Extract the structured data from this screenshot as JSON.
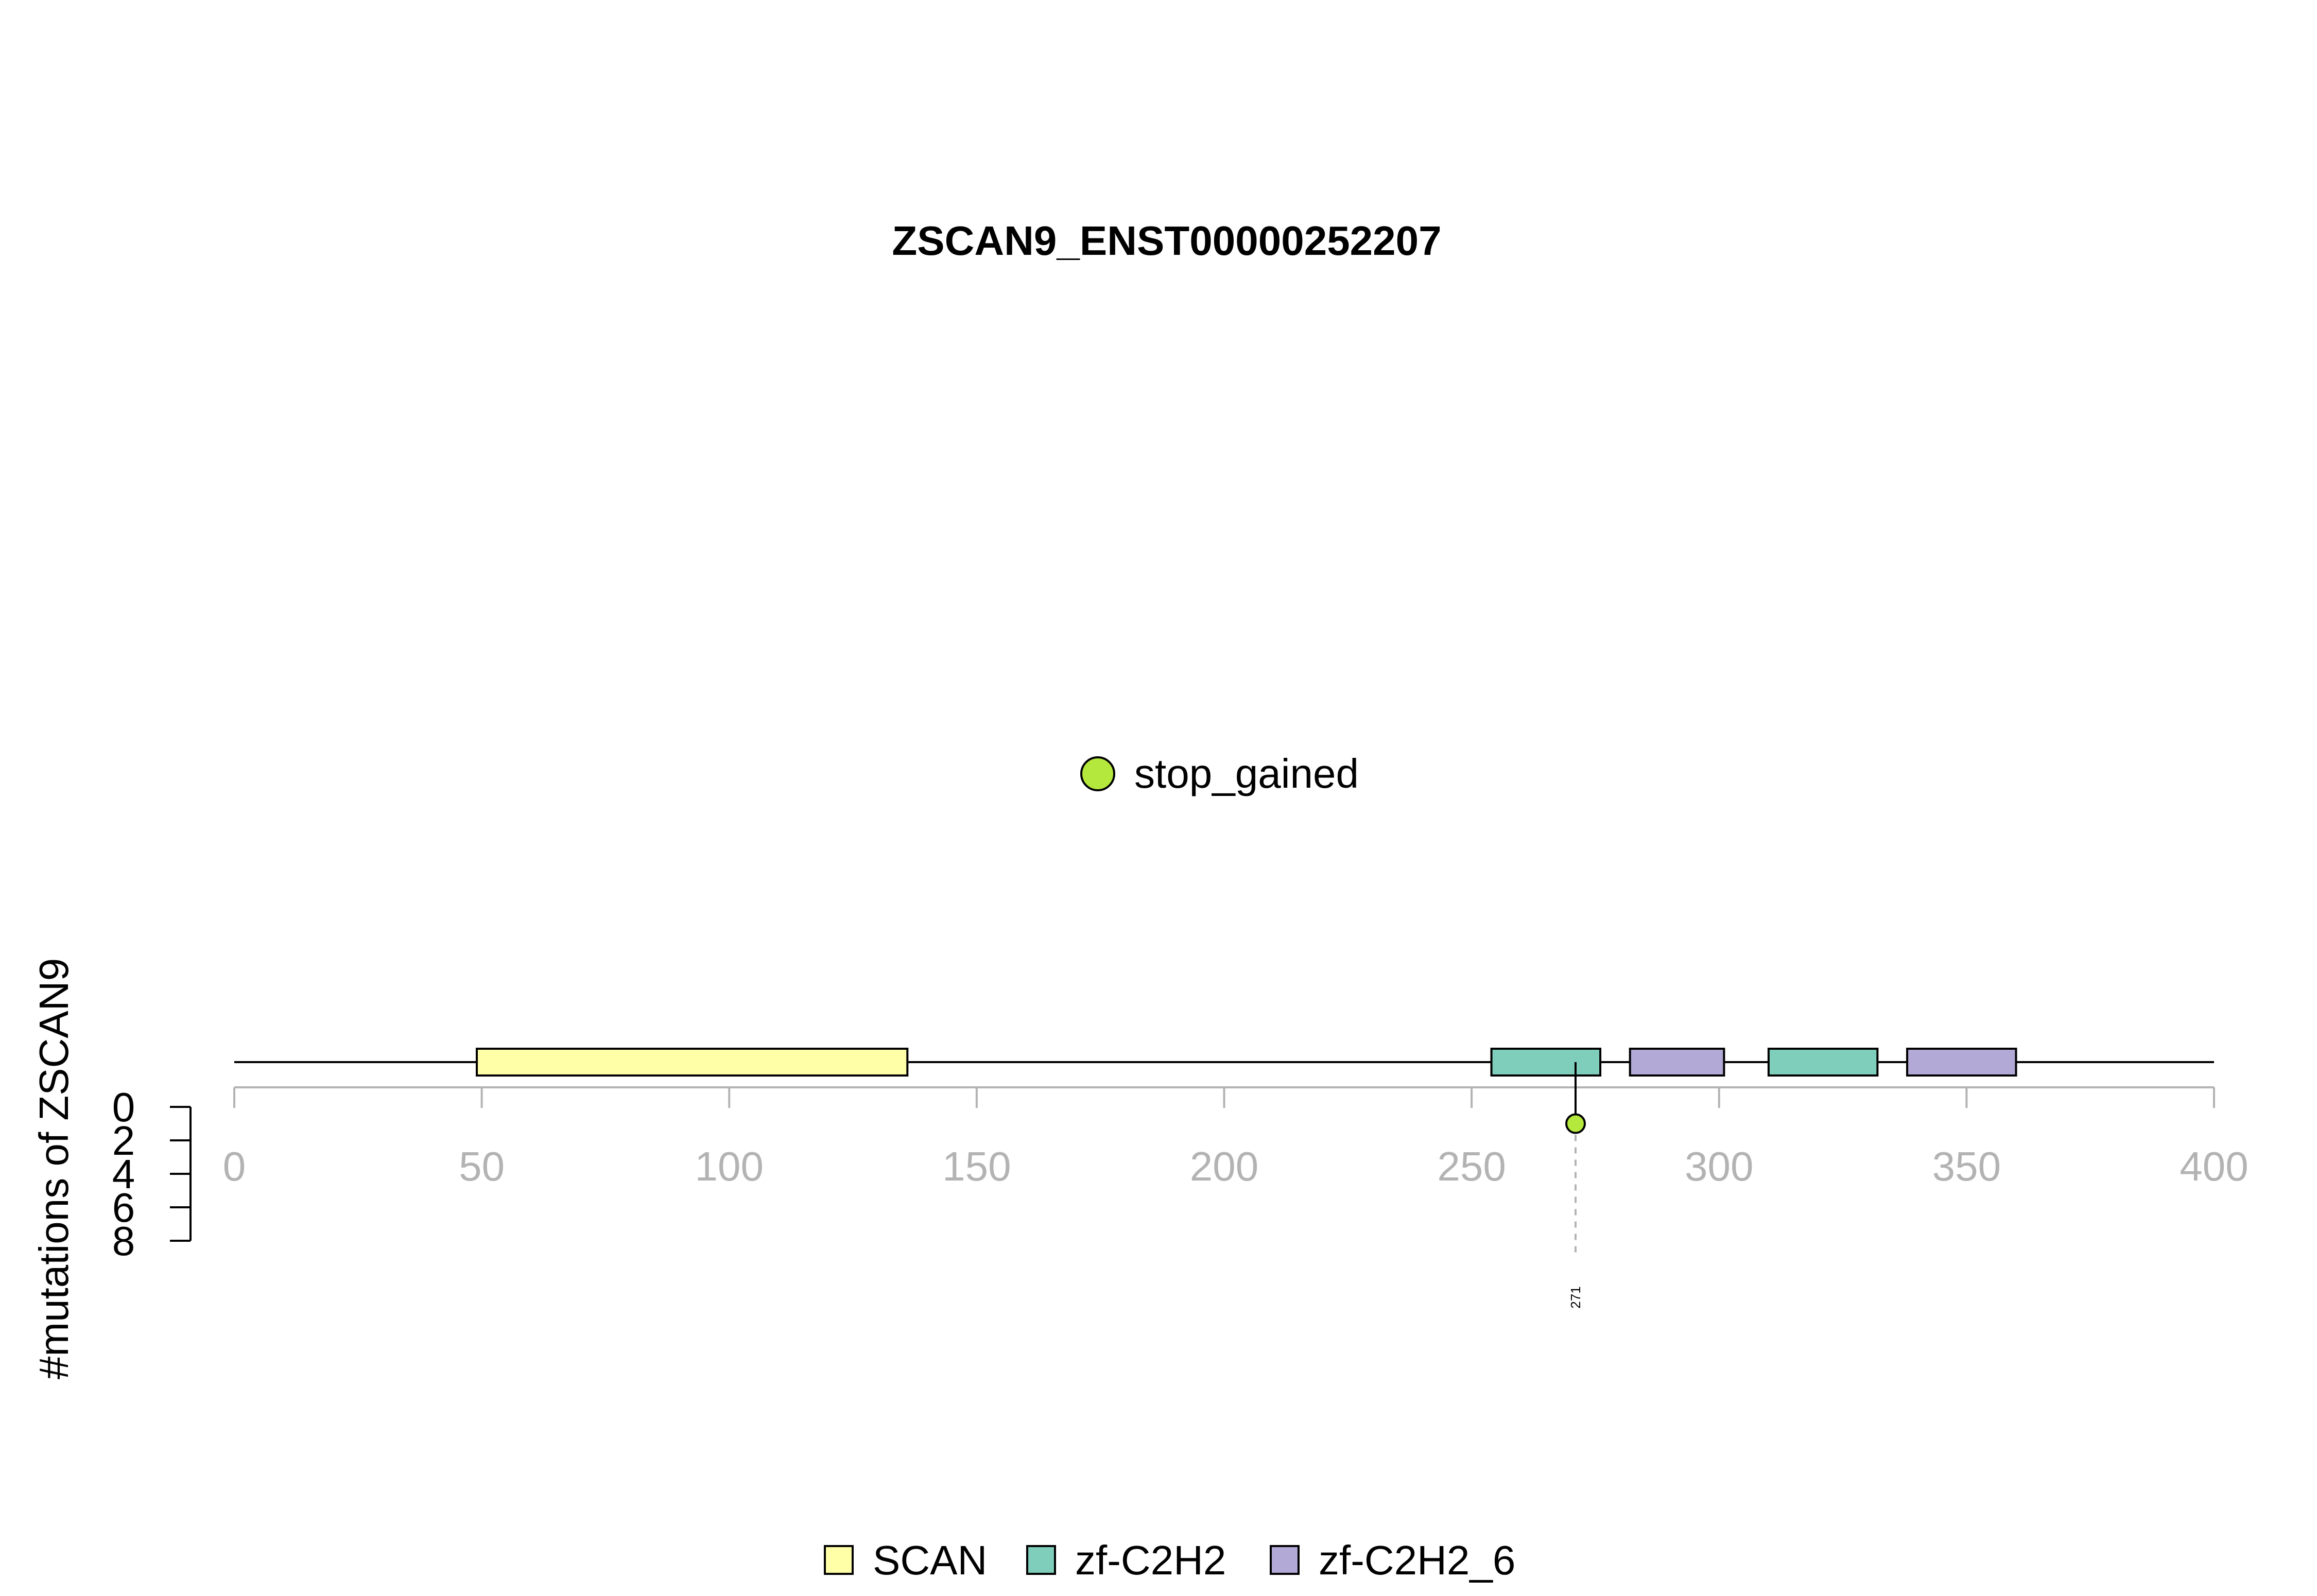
{
  "chart_data": {
    "type": "lollipop",
    "title": "ZSCAN9_ENST00000252207",
    "ylabel": "#mutations of ZSCAN9",
    "xlim": [
      0,
      400
    ],
    "x_ticks": [
      0,
      50,
      100,
      150,
      200,
      250,
      300,
      350,
      400
    ],
    "y_ticks": [
      0,
      2,
      4,
      6,
      8
    ],
    "protein_length": 400,
    "domains": [
      {
        "name": "SCAN",
        "start": 49,
        "end": 136,
        "color": "#ffffa8"
      },
      {
        "name": "zf-C2H2",
        "start": 254,
        "end": 276,
        "color": "#7fcdbb"
      },
      {
        "name": "zf-C2H2_6",
        "start": 282,
        "end": 301,
        "color": "#b3a9d6"
      },
      {
        "name": "zf-C2H2",
        "start": 310,
        "end": 332,
        "color": "#7fcdbb"
      },
      {
        "name": "zf-C2H2_6",
        "start": 338,
        "end": 360,
        "color": "#b3a9d6"
      }
    ],
    "mutations": [
      {
        "position": 271,
        "count": 1,
        "type": "stop_gained",
        "label": "271",
        "color": "#b5e83c"
      }
    ],
    "mutation_legend": [
      {
        "label": "stop_gained",
        "color": "#b5e83c"
      }
    ],
    "domain_legend": [
      {
        "label": "SCAN",
        "color": "#ffffa8"
      },
      {
        "label": "zf-C2H2",
        "color": "#7fcdbb"
      },
      {
        "label": "zf-C2H2_6",
        "color": "#b3a9d6"
      }
    ]
  }
}
